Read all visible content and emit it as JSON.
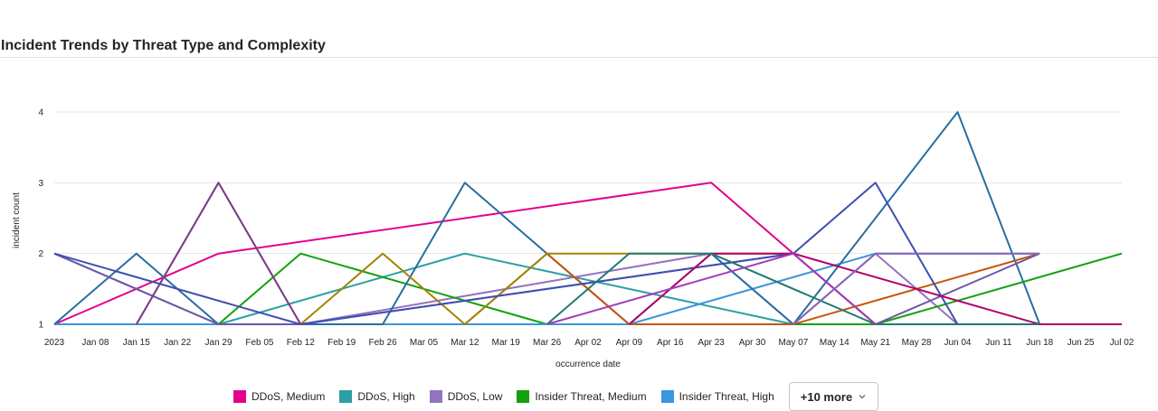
{
  "title": "Incident Trends by Threat Type and Complexity",
  "chart_data": {
    "type": "line",
    "title": "Incident Trends by Threat Type and Complexity",
    "xlabel": "occurrence date",
    "ylabel": "incident count",
    "x_ticks": [
      "2023",
      "Jan 08",
      "Jan 15",
      "Jan 22",
      "Jan 29",
      "Feb 05",
      "Feb 12",
      "Feb 19",
      "Feb 26",
      "Mar 05",
      "Mar 12",
      "Mar 19",
      "Mar 26",
      "Apr 02",
      "Apr 09",
      "Apr 16",
      "Apr 23",
      "Apr 30",
      "May 07",
      "May 14",
      "May 21",
      "May 28",
      "Jun 04",
      "Jun 11",
      "Jun 18",
      "Jun 25",
      "Jul 02"
    ],
    "y_ticks": [
      1,
      2,
      3,
      4
    ],
    "ylim": [
      1,
      4
    ],
    "grid": true,
    "legend_position": "bottom",
    "series": [
      {
        "name": "DDoS, Medium",
        "color": "#e3008c",
        "points": [
          [
            "2023-01-01",
            1
          ],
          [
            "2023-01-29",
            2
          ],
          [
            "2023-04-23",
            3
          ],
          [
            "2023-05-07",
            2
          ],
          [
            "2023-05-21",
            1
          ]
        ]
      },
      {
        "name": "DDoS, High",
        "color": "#2aa0a4",
        "points": [
          [
            "2023-01-29",
            1
          ],
          [
            "2023-03-12",
            2
          ],
          [
            "2023-05-07",
            1
          ]
        ]
      },
      {
        "name": "DDoS, Low",
        "color": "#9373c0",
        "points": [
          [
            "2023-01-01",
            2
          ],
          [
            "2023-01-29",
            1
          ],
          [
            "2023-02-12",
            1
          ],
          [
            "2023-04-23",
            2
          ],
          [
            "2023-05-07",
            1
          ],
          [
            "2023-05-21",
            2
          ],
          [
            "2023-06-04",
            1
          ]
        ]
      },
      {
        "name": "Insider Threat, Medium",
        "color": "#13a10e",
        "points": [
          [
            "2023-01-29",
            1
          ],
          [
            "2023-02-12",
            2
          ],
          [
            "2023-03-26",
            1
          ],
          [
            "2023-04-09",
            1
          ],
          [
            "2023-05-21",
            1
          ],
          [
            "2023-07-02",
            2
          ]
        ]
      },
      {
        "name": "Insider Threat, High",
        "color": "#3a96dd",
        "points": [
          [
            "2023-01-01",
            1
          ],
          [
            "2023-04-09",
            1
          ],
          [
            "2023-05-21",
            2
          ],
          [
            "2023-06-18",
            2
          ]
        ]
      },
      {
        "color": "#286ea1",
        "points": [
          [
            "2023-01-01",
            1
          ],
          [
            "2023-01-15",
            2
          ],
          [
            "2023-01-29",
            1
          ],
          [
            "2023-02-26",
            1
          ],
          [
            "2023-03-12",
            3
          ],
          [
            "2023-03-26",
            2
          ],
          [
            "2023-04-09",
            1
          ],
          [
            "2023-04-23",
            2
          ],
          [
            "2023-05-07",
            1
          ],
          [
            "2023-06-04",
            4
          ],
          [
            "2023-06-18",
            1
          ]
        ]
      },
      {
        "color": "#c8540b",
        "points": [
          [
            "2023-03-12",
            1
          ],
          [
            "2023-03-26",
            2
          ],
          [
            "2023-04-09",
            1
          ],
          [
            "2023-05-07",
            1
          ],
          [
            "2023-06-18",
            2
          ]
        ]
      },
      {
        "color": "#a08507",
        "points": [
          [
            "2023-01-15",
            1
          ],
          [
            "2023-01-29",
            3
          ],
          [
            "2023-02-12",
            1
          ],
          [
            "2023-02-26",
            2
          ],
          [
            "2023-03-12",
            1
          ],
          [
            "2023-03-26",
            2
          ],
          [
            "2023-05-07",
            2
          ]
        ]
      },
      {
        "color": "#6b58a8",
        "points": [
          [
            "2023-01-01",
            2
          ],
          [
            "2023-01-29",
            1
          ],
          [
            "2023-02-12",
            1
          ],
          [
            "2023-05-07",
            2
          ],
          [
            "2023-05-21",
            1
          ],
          [
            "2023-06-18",
            2
          ]
        ]
      },
      {
        "color": "#3f4fb0",
        "points": [
          [
            "2023-01-01",
            2
          ],
          [
            "2023-02-12",
            1
          ],
          [
            "2023-05-07",
            2
          ],
          [
            "2023-05-21",
            3
          ],
          [
            "2023-06-04",
            1
          ]
        ]
      },
      {
        "color": "#b0006b",
        "points": [
          [
            "2023-04-09",
            1
          ],
          [
            "2023-04-23",
            2
          ],
          [
            "2023-05-07",
            2
          ],
          [
            "2023-06-18",
            1
          ],
          [
            "2023-07-02",
            1
          ]
        ]
      },
      {
        "color": "#7a3c94",
        "points": [
          [
            "2023-01-15",
            1
          ],
          [
            "2023-01-29",
            3
          ],
          [
            "2023-02-12",
            1
          ]
        ]
      },
      {
        "color": "#1f7a73",
        "points": [
          [
            "2023-03-26",
            1
          ],
          [
            "2023-04-09",
            2
          ],
          [
            "2023-04-23",
            2
          ],
          [
            "2023-05-21",
            1
          ],
          [
            "2023-06-18",
            1
          ]
        ]
      },
      {
        "color": "#a23bb8",
        "points": [
          [
            "2023-03-26",
            1
          ],
          [
            "2023-05-07",
            2
          ],
          [
            "2023-05-21",
            1
          ]
        ]
      },
      {
        "color": "#8764b8",
        "points": [
          [
            "2023-05-07",
            1
          ],
          [
            "2023-05-21",
            2
          ],
          [
            "2023-06-18",
            2
          ]
        ]
      }
    ]
  },
  "legend": {
    "items": [
      {
        "label": "DDoS, Medium",
        "color": "#e3008c"
      },
      {
        "label": "DDoS, High",
        "color": "#2aa0a4"
      },
      {
        "label": "DDoS, Low",
        "color": "#9373c0"
      },
      {
        "label": "Insider Threat, Medium",
        "color": "#13a10e"
      },
      {
        "label": "Insider Threat, High",
        "color": "#3a96dd"
      }
    ],
    "more_label": "+10 more",
    "more_icon": "chevron-down-icon"
  }
}
